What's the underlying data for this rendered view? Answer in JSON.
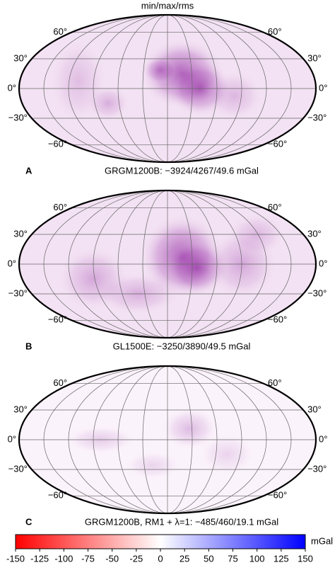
{
  "header": {
    "title": "min/max/rms"
  },
  "lat_labels": [
    "60°",
    "30°",
    "0°",
    "−30°",
    "−60°"
  ],
  "panels": [
    {
      "label": "A",
      "caption": "GRGM1200B: −3924/4267/49.6 mGal"
    },
    {
      "label": "B",
      "caption": "GL1500E: −3250/3890/49.5 mGal"
    },
    {
      "label": "C",
      "caption": "GRGM1200B, RM1 + λ=1: −485/460/19.1 mGal"
    }
  ],
  "colorbar": {
    "lim": [
      -150,
      150
    ],
    "ticks": [
      -150,
      -125,
      -100,
      -75,
      -50,
      -25,
      0,
      25,
      50,
      75,
      100,
      125,
      150
    ],
    "unit": "mGal"
  }
}
